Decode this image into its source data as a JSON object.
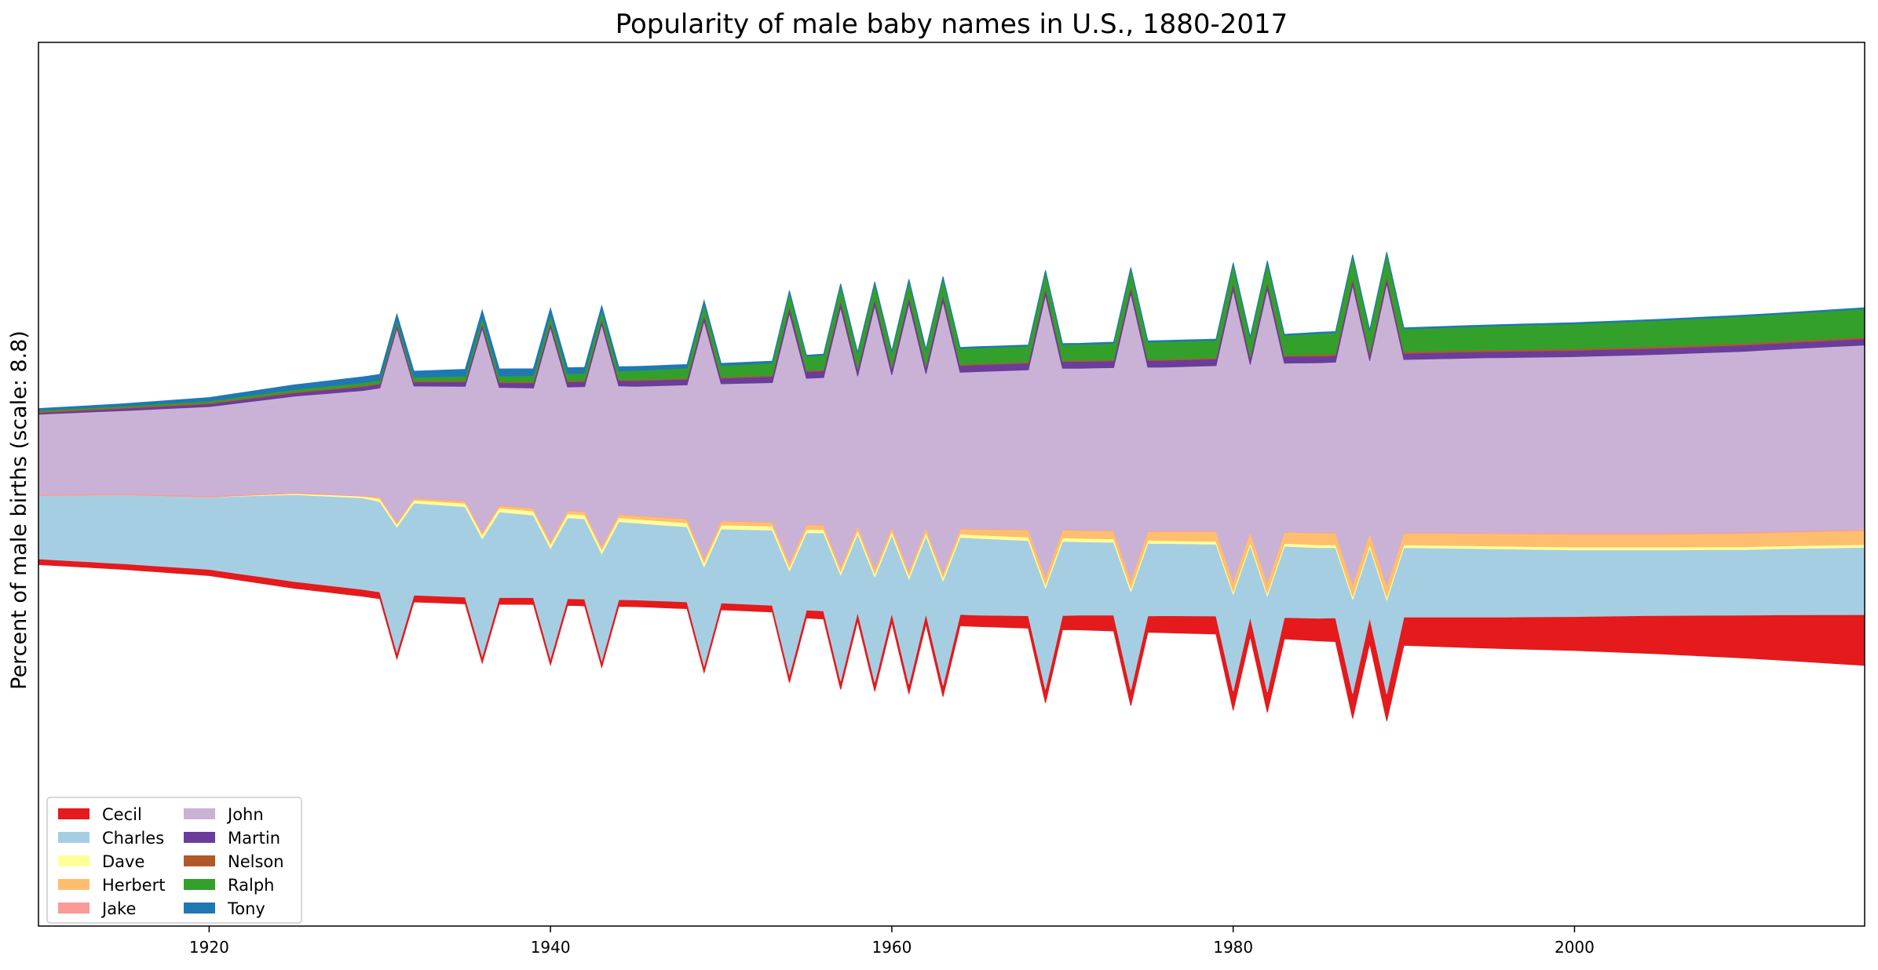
{
  "chart_data": {
    "type": "area",
    "stacking": "streamgraph (centered baseline)",
    "title": "Popularity of male baby names in U.S., 1880-2017",
    "xlabel": "",
    "ylabel": "Percent of male births (scale: 8.8)",
    "xlim": [
      1910,
      2017
    ],
    "x_ticks": [
      1920,
      1940,
      1960,
      1980,
      2000
    ],
    "y_ticks_shown": false,
    "grid": false,
    "legend": {
      "placement": "lower-left",
      "columns": 2
    },
    "anchor_years": [
      1910,
      1915,
      1920,
      1925,
      1929,
      1930,
      1931,
      1935,
      1936,
      1939,
      1940,
      1942,
      1943,
      1945,
      1948,
      1949,
      1950,
      1953,
      1954,
      1955,
      1957,
      1959,
      1961,
      1963,
      1965,
      1968,
      1969,
      1971,
      1973,
      1974,
      1976,
      1979,
      1980,
      1982,
      1983,
      1985,
      1987,
      1990,
      1995,
      2000,
      2005,
      2010,
      2012,
      2017
    ],
    "spike_years": [
      1931,
      1936,
      1940,
      1943,
      1949,
      1954,
      1957,
      1959,
      1961,
      1963,
      1969,
      1974,
      1980,
      1982,
      1987,
      1989
    ],
    "series": [
      {
        "name": "Cecil",
        "color": "#e41a1c",
        "values": [
          0.1,
          0.1,
          0.11,
          0.12,
          0.12,
          0.12,
          0.12,
          0.12,
          0.12,
          0.12,
          0.12,
          0.12,
          0.12,
          0.12,
          0.12,
          0.12,
          0.12,
          0.12,
          0.14,
          0.14,
          0.15,
          0.16,
          0.17,
          0.2,
          0.2,
          0.22,
          0.24,
          0.26,
          0.28,
          0.28,
          0.3,
          0.32,
          0.34,
          0.36,
          0.38,
          0.4,
          0.44,
          0.5,
          0.55,
          0.6,
          0.68,
          0.76,
          0.8,
          0.9
        ]
      },
      {
        "name": "Charles",
        "color": "#a6cee3",
        "values": [
          1.12,
          1.22,
          1.28,
          1.54,
          1.62,
          1.6,
          1.64,
          1.6,
          1.54,
          1.46,
          1.44,
          1.42,
          1.4,
          1.36,
          1.33,
          1.3,
          1.31,
          1.33,
          1.36,
          1.37,
          1.39,
          1.38,
          1.38,
          1.37,
          1.36,
          1.33,
          1.33,
          1.3,
          1.29,
          1.29,
          1.28,
          1.27,
          1.27,
          1.26,
          1.26,
          1.25,
          1.24,
          1.23,
          1.21,
          1.18,
          1.16,
          1.16,
          1.17,
          1.19
        ]
      },
      {
        "name": "Dave",
        "color": "#ffff99",
        "values": [
          0.0,
          0.0,
          0.0,
          0.02,
          0.03,
          0.05,
          0.05,
          0.06,
          0.07,
          0.07,
          0.07,
          0.07,
          0.07,
          0.07,
          0.07,
          0.07,
          0.07,
          0.07,
          0.06,
          0.06,
          0.06,
          0.06,
          0.06,
          0.06,
          0.06,
          0.06,
          0.06,
          0.06,
          0.06,
          0.06,
          0.05,
          0.05,
          0.05,
          0.05,
          0.05,
          0.05,
          0.05,
          0.05,
          0.05,
          0.05,
          0.05,
          0.05,
          0.05,
          0.05
        ]
      },
      {
        "name": "Herbert",
        "color": "#fdbf6f",
        "values": [
          0.0,
          0.0,
          0.0,
          0.0,
          0.0,
          0.03,
          0.03,
          0.04,
          0.04,
          0.05,
          0.05,
          0.06,
          0.06,
          0.06,
          0.07,
          0.07,
          0.07,
          0.07,
          0.08,
          0.08,
          0.08,
          0.08,
          0.08,
          0.08,
          0.1,
          0.13,
          0.14,
          0.14,
          0.14,
          0.15,
          0.16,
          0.18,
          0.18,
          0.19,
          0.2,
          0.21,
          0.21,
          0.21,
          0.22,
          0.23,
          0.23,
          0.24,
          0.24,
          0.25
        ]
      },
      {
        "name": "Jake",
        "color": "#fb9a99",
        "values": [
          0.02,
          0.02,
          0.02,
          0.02,
          0.01,
          0.01,
          0.01,
          0.01,
          0.01,
          0.01,
          0.01,
          0.01,
          0.01,
          0.01,
          0.01,
          0.01,
          0.01,
          0.01,
          0.01,
          0.01,
          0.01,
          0.01,
          0.01,
          0.01,
          0.01,
          0.01,
          0.01,
          0.01,
          0.01,
          0.01,
          0.01,
          0.01,
          0.01,
          0.01,
          0.01,
          0.01,
          0.01,
          0.01,
          0.01,
          0.02,
          0.02,
          0.02,
          0.02,
          0.02
        ]
      },
      {
        "name": "John",
        "color": "#cab2d6",
        "values": [
          1.42,
          1.47,
          1.58,
          1.7,
          1.86,
          1.92,
          1.96,
          2.02,
          2.06,
          2.12,
          2.16,
          2.2,
          2.24,
          2.28,
          2.36,
          2.4,
          2.42,
          2.46,
          2.52,
          2.58,
          2.62,
          2.66,
          2.7,
          2.74,
          2.78,
          2.82,
          2.84,
          2.86,
          2.88,
          2.89,
          2.9,
          2.92,
          2.94,
          2.96,
          2.98,
          3.0,
          3.02,
          3.06,
          3.1,
          3.12,
          3.16,
          3.2,
          3.22,
          3.26
        ]
      },
      {
        "name": "Martin",
        "color": "#6a3d9a",
        "values": [
          0.03,
          0.04,
          0.05,
          0.06,
          0.07,
          0.07,
          0.07,
          0.08,
          0.08,
          0.09,
          0.09,
          0.09,
          0.09,
          0.1,
          0.1,
          0.1,
          0.1,
          0.11,
          0.12,
          0.12,
          0.12,
          0.12,
          0.12,
          0.12,
          0.12,
          0.12,
          0.12,
          0.12,
          0.12,
          0.12,
          0.12,
          0.12,
          0.12,
          0.12,
          0.12,
          0.12,
          0.11,
          0.11,
          0.11,
          0.11,
          0.11,
          0.11,
          0.11,
          0.11
        ]
      },
      {
        "name": "Nelson",
        "color": "#b15928",
        "values": [
          0.02,
          0.02,
          0.02,
          0.02,
          0.02,
          0.02,
          0.02,
          0.02,
          0.02,
          0.02,
          0.02,
          0.02,
          0.02,
          0.02,
          0.02,
          0.02,
          0.02,
          0.02,
          0.02,
          0.02,
          0.02,
          0.02,
          0.02,
          0.02,
          0.02,
          0.02,
          0.02,
          0.02,
          0.02,
          0.02,
          0.02,
          0.02,
          0.02,
          0.02,
          0.02,
          0.03,
          0.03,
          0.03,
          0.03,
          0.03,
          0.03,
          0.03,
          0.03,
          0.03
        ]
      },
      {
        "name": "Ralph",
        "color": "#33a02c",
        "values": [
          0.02,
          0.02,
          0.03,
          0.04,
          0.05,
          0.05,
          0.06,
          0.08,
          0.09,
          0.11,
          0.12,
          0.13,
          0.14,
          0.16,
          0.18,
          0.19,
          0.2,
          0.22,
          0.24,
          0.25,
          0.26,
          0.26,
          0.27,
          0.28,
          0.28,
          0.28,
          0.28,
          0.28,
          0.29,
          0.3,
          0.31,
          0.31,
          0.32,
          0.34,
          0.35,
          0.37,
          0.38,
          0.4,
          0.42,
          0.44,
          0.46,
          0.48,
          0.48,
          0.5
        ]
      },
      {
        "name": "Tony",
        "color": "#1f78b4",
        "values": [
          0.03,
          0.04,
          0.06,
          0.08,
          0.1,
          0.1,
          0.1,
          0.12,
          0.13,
          0.12,
          0.11,
          0.1,
          0.08,
          0.07,
          0.06,
          0.05,
          0.04,
          0.03,
          0.02,
          0.02,
          0.02,
          0.02,
          0.02,
          0.02,
          0.02,
          0.02,
          0.02,
          0.02,
          0.02,
          0.02,
          0.02,
          0.02,
          0.02,
          0.02,
          0.02,
          0.02,
          0.02,
          0.02,
          0.02,
          0.02,
          0.02,
          0.02,
          0.02,
          0.02
        ]
      }
    ]
  }
}
